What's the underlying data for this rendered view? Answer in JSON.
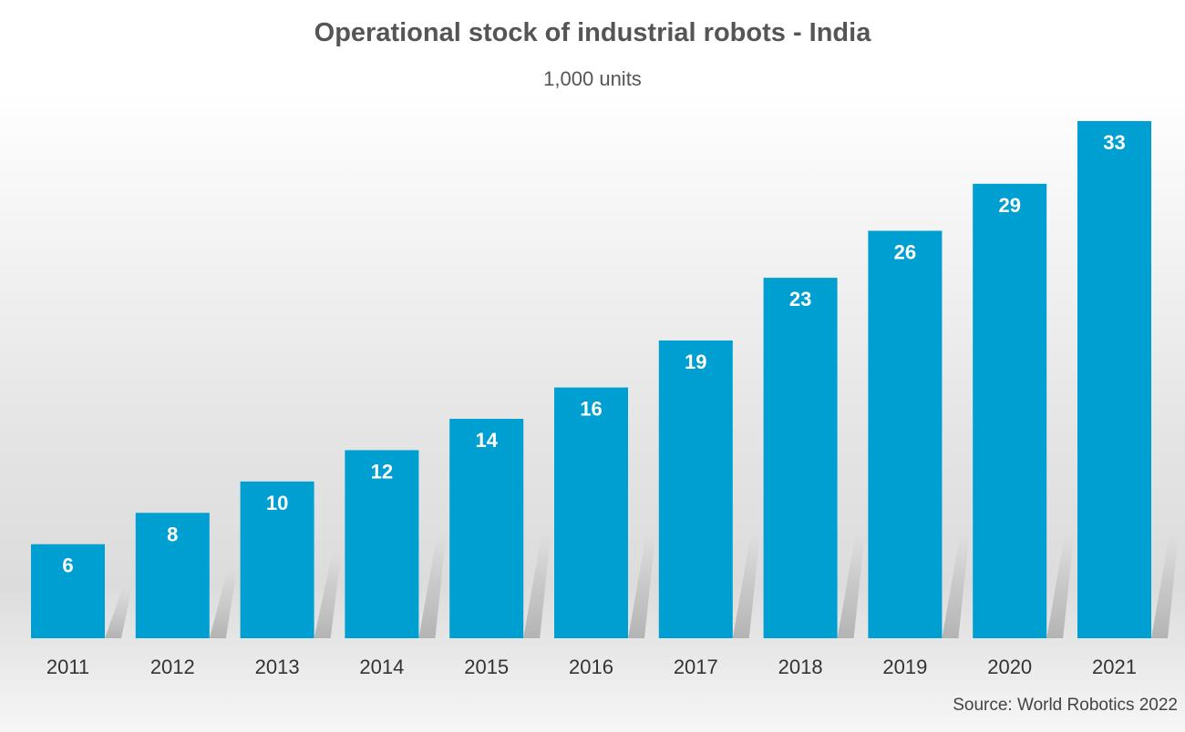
{
  "chart_data": {
    "type": "bar",
    "title": "Operational stock of industrial robots - India",
    "subtitle": "1,000 units",
    "categories": [
      "2011",
      "2012",
      "2013",
      "2014",
      "2015",
      "2016",
      "2017",
      "2018",
      "2019",
      "2020",
      "2021"
    ],
    "values": [
      6,
      8,
      10,
      12,
      14,
      16,
      19,
      23,
      26,
      29,
      33
    ],
    "xlabel": "",
    "ylabel": "",
    "ylim": [
      0,
      33
    ],
    "grid": false,
    "data_labels": true,
    "bar_color": "#009fd1",
    "source": "Source: World Robotics 2022"
  }
}
